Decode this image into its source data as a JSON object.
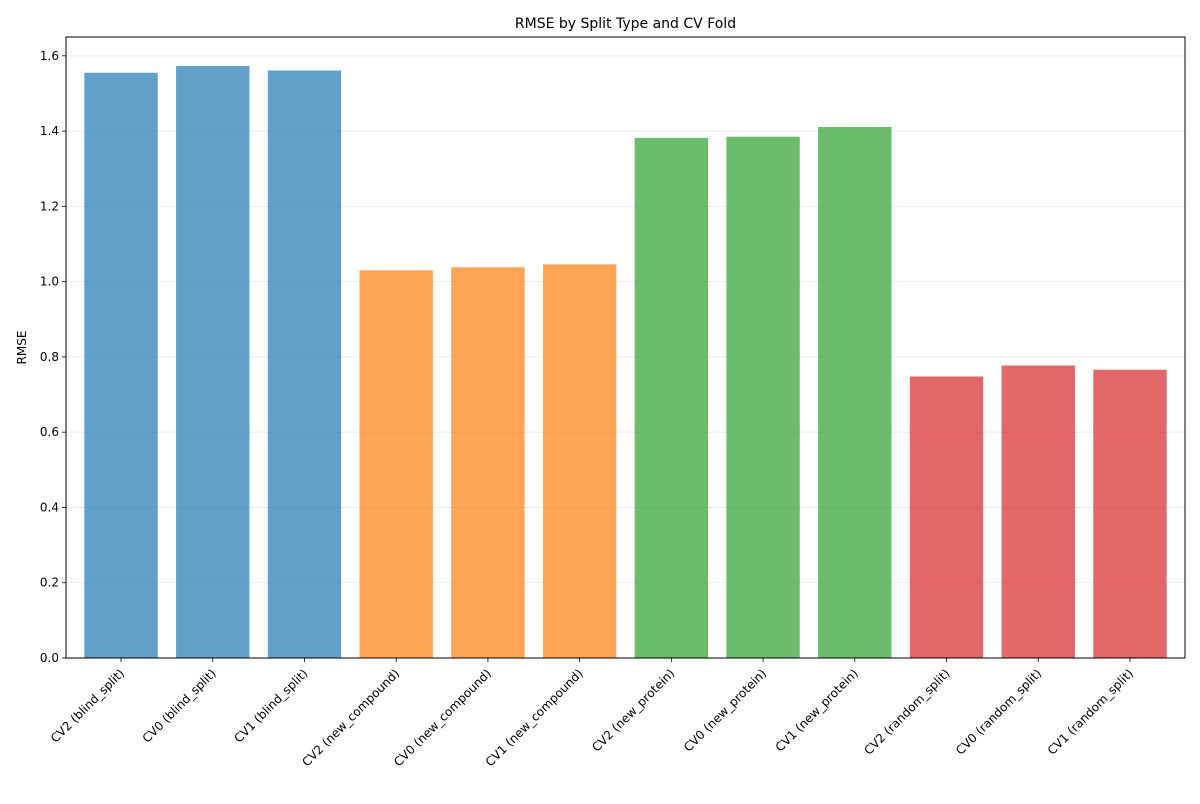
{
  "chart_data": {
    "type": "bar",
    "title": "RMSE by Split Type and CV Fold",
    "xlabel": "",
    "ylabel": "RMSE",
    "ylim": [
      0,
      1.65
    ],
    "yticks": [
      0.0,
      0.2,
      0.4,
      0.6,
      0.8,
      1.0,
      1.2,
      1.4,
      1.6
    ],
    "grid": "y",
    "categories": [
      "CV2 (blind_split)",
      "CV0 (blind_split)",
      "CV1 (blind_split)",
      "CV2 (new_compound)",
      "CV0 (new_compound)",
      "CV1 (new_compound)",
      "CV2 (new_protein)",
      "CV0 (new_protein)",
      "CV1 (new_protein)",
      "CV2 (random_split)",
      "CV0 (random_split)",
      "CV1 (random_split)"
    ],
    "values": [
      1.555,
      1.573,
      1.561,
      1.03,
      1.038,
      1.046,
      1.382,
      1.385,
      1.411,
      0.748,
      0.777,
      0.766
    ],
    "colors": [
      "#1f77b4",
      "#1f77b4",
      "#1f77b4",
      "#ff7f0e",
      "#ff7f0e",
      "#ff7f0e",
      "#2ca02c",
      "#2ca02c",
      "#2ca02c",
      "#d62728",
      "#d62728",
      "#d62728"
    ],
    "bar_opacity": 0.7
  }
}
